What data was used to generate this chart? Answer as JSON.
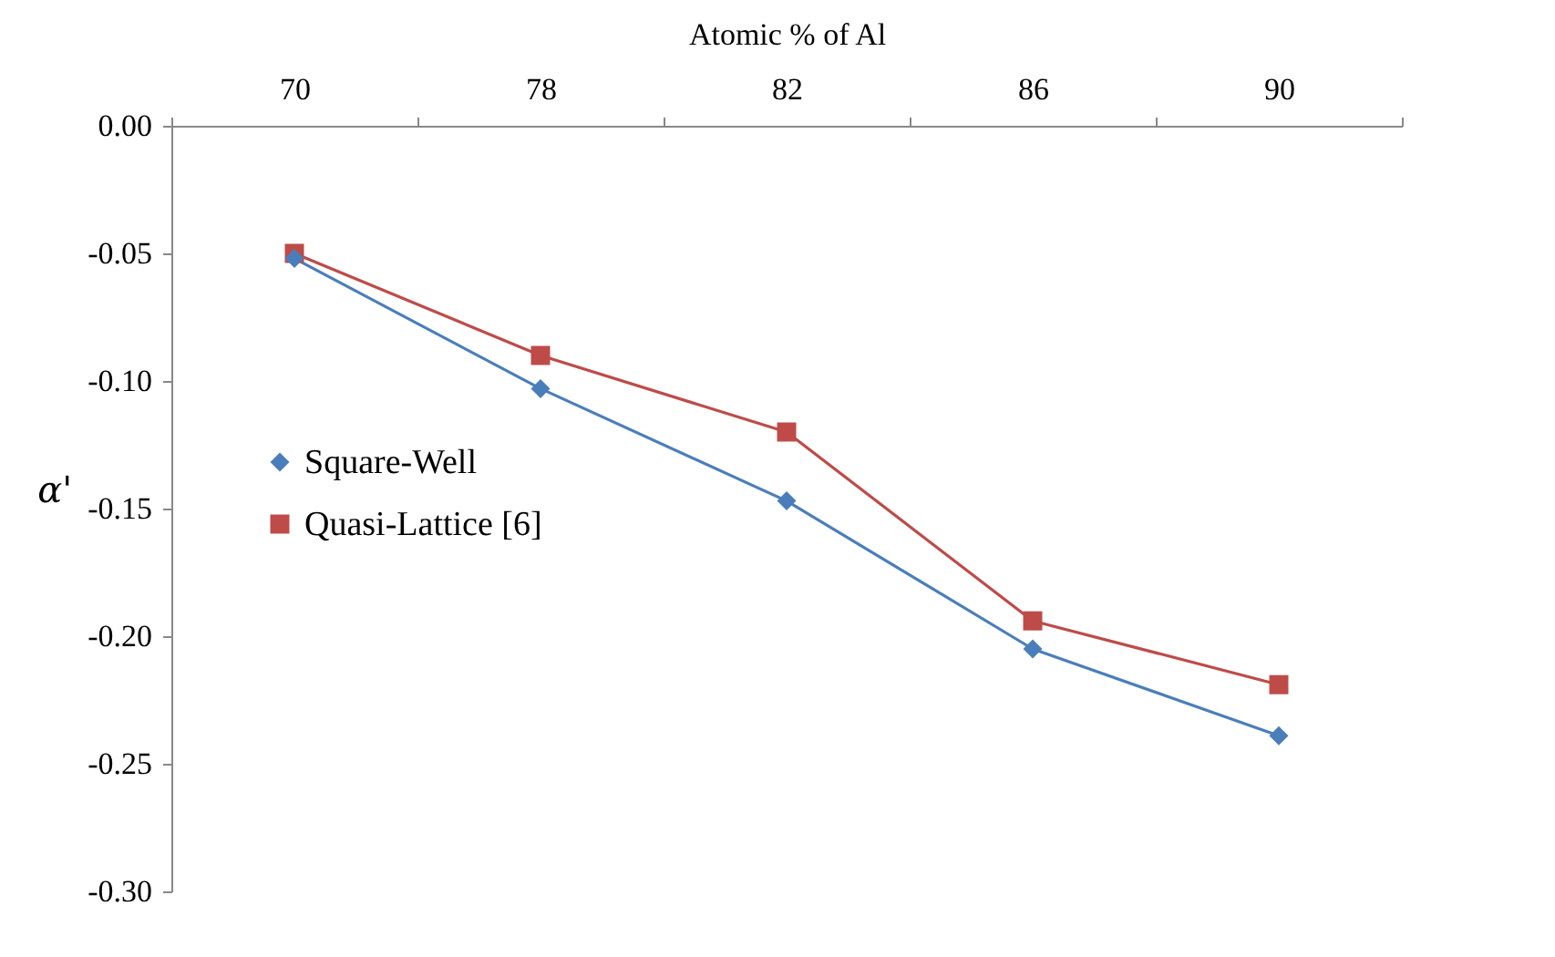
{
  "chart_data": {
    "type": "line",
    "xlabel": "Atomic % of Al",
    "ylabel": "α'",
    "categories": [
      "70",
      "78",
      "82",
      "86",
      "90"
    ],
    "series": [
      {
        "name": "Square-Well",
        "color": "#4a7ebb",
        "marker": "diamond",
        "values": [
          -0.052,
          -0.103,
          -0.147,
          -0.205,
          -0.239
        ]
      },
      {
        "name": "Quasi-Lattice [6]",
        "color": "#be4b48",
        "marker": "square",
        "values": [
          -0.05,
          -0.09,
          -0.12,
          -0.194,
          -0.219
        ]
      }
    ],
    "ylim": [
      -0.3,
      0.0
    ],
    "yticks": [
      {
        "value": -0.3,
        "label": "-0.30"
      },
      {
        "value": -0.25,
        "label": "-0.25"
      },
      {
        "value": -0.2,
        "label": "-0.20"
      },
      {
        "value": -0.15,
        "label": "-0.15"
      },
      {
        "value": -0.1,
        "label": "-0.10"
      },
      {
        "value": -0.05,
        "label": "-0.05"
      },
      {
        "value": 0,
        "label": "0.00"
      }
    ],
    "grid": false,
    "legend": "left",
    "line_style": "solid"
  }
}
